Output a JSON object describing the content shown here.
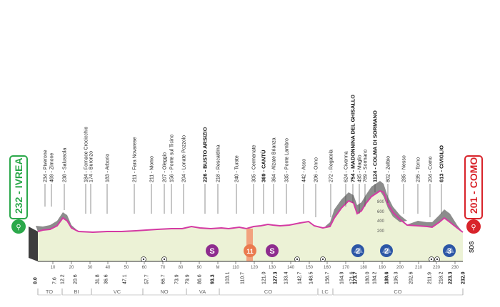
{
  "start": {
    "name": "IVREA",
    "altitude": "232",
    "color": "#2ba84a"
  },
  "finish": {
    "name": "COMO",
    "altitude": "201",
    "color": "#d8232a"
  },
  "brand": "SDS",
  "altitude_scale": [
    "800",
    "600",
    "400",
    "200"
  ],
  "places": [
    {
      "id": "p1",
      "alt": "234",
      "name": "Piverone",
      "bold": false
    },
    {
      "id": "p2",
      "alt": "469",
      "name": "Zimone",
      "bold": false
    },
    {
      "id": "p3",
      "alt": "238",
      "name": "Salussola",
      "bold": false
    },
    {
      "id": "p4",
      "alt": "184",
      "name": "Fornace Crocicchio",
      "bold": false
    },
    {
      "id": "p5",
      "alt": "174",
      "name": "Buronzo",
      "bold": false
    },
    {
      "id": "p6",
      "alt": "183",
      "name": "Arborio",
      "bold": false
    },
    {
      "id": "p7",
      "alt": "211",
      "name": "Fara Novarese",
      "bold": false
    },
    {
      "id": "p8",
      "alt": "211",
      "name": "Momo",
      "bold": false
    },
    {
      "id": "p9",
      "alt": "207",
      "name": "Oleggio",
      "bold": false
    },
    {
      "id": "p10",
      "alt": "156",
      "name": "Ponte sul Ticino",
      "bold": false
    },
    {
      "id": "p11",
      "alt": "204",
      "name": "Lonate Pozzolo",
      "bold": false
    },
    {
      "id": "p12",
      "alt": "226",
      "name": "BUSTO ARSIZIO",
      "bold": true
    },
    {
      "id": "p13",
      "alt": "218",
      "name": "Rescaldina",
      "bold": false
    },
    {
      "id": "p14",
      "alt": "240",
      "name": "Turate",
      "bold": false
    },
    {
      "id": "p15",
      "alt": "305",
      "name": "Cermenate",
      "bold": false
    },
    {
      "id": "p16",
      "alt": "369",
      "name": "CANTÙ",
      "bold": true
    },
    {
      "id": "p17",
      "alt": "364",
      "name": "Alzate Brianza",
      "bold": false
    },
    {
      "id": "p18",
      "alt": "335",
      "name": "Ponte Lambro",
      "bold": false
    },
    {
      "id": "p19",
      "alt": "442",
      "name": "Asso",
      "bold": false
    },
    {
      "id": "p20",
      "alt": "206",
      "name": "Onno",
      "bold": false
    },
    {
      "id": "p21",
      "alt": "272",
      "name": "Regatola",
      "bold": false
    },
    {
      "id": "p22",
      "alt": "624",
      "name": "Civenna",
      "bold": false
    },
    {
      "id": "p23",
      "alt": "754",
      "name": "MADONNINA DEL GHISALLO",
      "bold": true
    },
    {
      "id": "p24",
      "alt": "495",
      "name": "Maglio",
      "bold": false
    },
    {
      "id": "p25",
      "alt": "769",
      "name": "Sormano",
      "bold": false
    },
    {
      "id": "p26",
      "alt": "1124",
      "name": "COLMA DI SORMANO",
      "bold": true
    },
    {
      "id": "p27",
      "alt": "802",
      "name": "Zelbio",
      "bold": false
    },
    {
      "id": "p28",
      "alt": "285",
      "name": "Nesso",
      "bold": false
    },
    {
      "id": "p29",
      "alt": "235",
      "name": "Torno",
      "bold": false
    },
    {
      "id": "p30",
      "alt": "204",
      "name": "Como",
      "bold": false
    },
    {
      "id": "p31",
      "alt": "613",
      "name": "CIVIGLIO",
      "bold": true
    }
  ],
  "distances": [
    "0.0",
    "7.6",
    "12.2",
    "20.6",
    "31.8",
    "36.6",
    "47.1",
    "57.7",
    "66.7",
    "73.9",
    "79.9",
    "86.6",
    "93.3",
    "103.1",
    "110.7",
    "121.0",
    "127.3",
    "133.4",
    "142.7",
    "148.5",
    "156.7",
    "164.9",
    "171.6",
    "173.7",
    "180.0",
    "184.2",
    "189.6",
    "195.3",
    "202.6",
    "211.9",
    "218.2",
    "223.3",
    "232.0"
  ],
  "scale_ticks": [
    "10",
    "20",
    "30",
    "40",
    "50",
    "60",
    "70",
    "80",
    "90",
    "M",
    "110",
    "120",
    "130",
    "140",
    "150",
    "160",
    "170",
    "180",
    "190",
    "200",
    "210",
    "220",
    "230"
  ],
  "regions": [
    "TO",
    "BI",
    "VC",
    "NO",
    "VA",
    "CO",
    "LC",
    "CO"
  ],
  "markers": [
    {
      "id": "sprint1",
      "label": "S",
      "kind": "sprint",
      "color": "#8e2c8e"
    },
    {
      "id": "km11",
      "label": "11",
      "kind": "finale",
      "color": "#ea7a4e"
    },
    {
      "id": "sprint2",
      "label": "S",
      "kind": "sprint",
      "color": "#8e2c8e"
    },
    {
      "id": "kom1",
      "label": "2",
      "kind": "kom",
      "color": "#2c56a6"
    },
    {
      "id": "kom2",
      "label": "2",
      "kind": "kom",
      "color": "#2c56a6"
    },
    {
      "id": "kom3",
      "label": "3",
      "kind": "kom",
      "color": "#2c56a6"
    }
  ],
  "colors": {
    "profile_fill": "#ecf2d6",
    "profile_line": "#d43aa3",
    "mountain": "#8c8c8c",
    "shadow": "#3d3d3d"
  }
}
